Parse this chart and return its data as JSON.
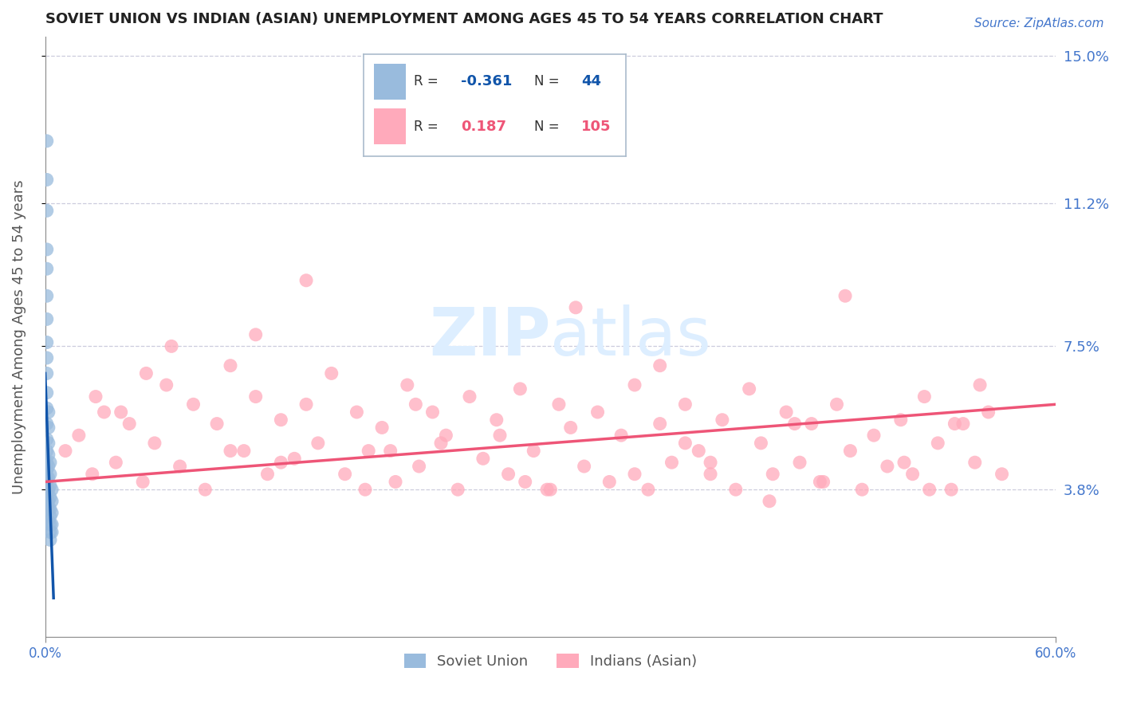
{
  "title": "SOVIET UNION VS INDIAN (ASIAN) UNEMPLOYMENT AMONG AGES 45 TO 54 YEARS CORRELATION CHART",
  "source_text": "Source: ZipAtlas.com",
  "ylabel": "Unemployment Among Ages 45 to 54 years",
  "xlim": [
    0.0,
    0.6
  ],
  "ylim": [
    0.0,
    0.155
  ],
  "yticks": [
    0.038,
    0.075,
    0.112,
    0.15
  ],
  "ytick_labels": [
    "3.8%",
    "7.5%",
    "11.2%",
    "15.0%"
  ],
  "xtick_labels": [
    "0.0%",
    "60.0%"
  ],
  "xtick_positions": [
    0.0,
    0.6
  ],
  "blue_color": "#99BBDD",
  "pink_color": "#FFAABB",
  "blue_line_color": "#1155AA",
  "pink_line_color": "#EE5577",
  "axis_color": "#888888",
  "tick_label_color": "#4477CC",
  "title_color": "#222222",
  "watermark_color": "#DDEEFF",
  "grid_color": "#CCCCDD",
  "soviet_x": [
    0.001,
    0.001,
    0.001,
    0.001,
    0.001,
    0.001,
    0.001,
    0.001,
    0.001,
    0.001,
    0.001,
    0.001,
    0.001,
    0.001,
    0.001,
    0.001,
    0.001,
    0.001,
    0.001,
    0.001,
    0.002,
    0.002,
    0.002,
    0.002,
    0.002,
    0.002,
    0.002,
    0.002,
    0.002,
    0.002,
    0.003,
    0.003,
    0.003,
    0.003,
    0.003,
    0.003,
    0.003,
    0.003,
    0.003,
    0.004,
    0.004,
    0.004,
    0.004,
    0.004
  ],
  "soviet_y": [
    0.128,
    0.118,
    0.11,
    0.1,
    0.095,
    0.088,
    0.082,
    0.076,
    0.072,
    0.068,
    0.063,
    0.059,
    0.055,
    0.051,
    0.048,
    0.045,
    0.043,
    0.041,
    0.038,
    0.036,
    0.058,
    0.054,
    0.05,
    0.047,
    0.044,
    0.041,
    0.038,
    0.035,
    0.033,
    0.03,
    0.045,
    0.042,
    0.039,
    0.036,
    0.033,
    0.031,
    0.029,
    0.027,
    0.025,
    0.038,
    0.035,
    0.032,
    0.029,
    0.027
  ],
  "indian_x": [
    0.012,
    0.02,
    0.028,
    0.035,
    0.042,
    0.05,
    0.058,
    0.065,
    0.072,
    0.08,
    0.088,
    0.095,
    0.102,
    0.11,
    0.118,
    0.125,
    0.132,
    0.14,
    0.148,
    0.155,
    0.162,
    0.17,
    0.178,
    0.185,
    0.192,
    0.2,
    0.208,
    0.215,
    0.222,
    0.23,
    0.238,
    0.245,
    0.252,
    0.26,
    0.268,
    0.275,
    0.282,
    0.29,
    0.298,
    0.305,
    0.312,
    0.32,
    0.328,
    0.335,
    0.342,
    0.35,
    0.358,
    0.365,
    0.372,
    0.38,
    0.388,
    0.395,
    0.402,
    0.41,
    0.418,
    0.425,
    0.432,
    0.44,
    0.448,
    0.455,
    0.462,
    0.47,
    0.478,
    0.485,
    0.492,
    0.5,
    0.508,
    0.515,
    0.522,
    0.53,
    0.538,
    0.545,
    0.552,
    0.56,
    0.568,
    0.075,
    0.155,
    0.235,
    0.315,
    0.395,
    0.475,
    0.555,
    0.045,
    0.125,
    0.205,
    0.285,
    0.365,
    0.445,
    0.525,
    0.06,
    0.14,
    0.22,
    0.3,
    0.38,
    0.46,
    0.54,
    0.03,
    0.11,
    0.19,
    0.27,
    0.35,
    0.43,
    0.51
  ],
  "indian_y": [
    0.048,
    0.052,
    0.042,
    0.058,
    0.045,
    0.055,
    0.04,
    0.05,
    0.065,
    0.044,
    0.06,
    0.038,
    0.055,
    0.07,
    0.048,
    0.062,
    0.042,
    0.056,
    0.046,
    0.06,
    0.05,
    0.068,
    0.042,
    0.058,
    0.048,
    0.054,
    0.04,
    0.065,
    0.044,
    0.058,
    0.052,
    0.038,
    0.062,
    0.046,
    0.056,
    0.042,
    0.064,
    0.048,
    0.038,
    0.06,
    0.054,
    0.044,
    0.058,
    0.04,
    0.052,
    0.065,
    0.038,
    0.055,
    0.045,
    0.06,
    0.048,
    0.042,
    0.056,
    0.038,
    0.064,
    0.05,
    0.042,
    0.058,
    0.045,
    0.055,
    0.04,
    0.06,
    0.048,
    0.038,
    0.052,
    0.044,
    0.056,
    0.042,
    0.062,
    0.05,
    0.038,
    0.055,
    0.045,
    0.058,
    0.042,
    0.075,
    0.092,
    0.05,
    0.085,
    0.045,
    0.088,
    0.065,
    0.058,
    0.078,
    0.048,
    0.04,
    0.07,
    0.055,
    0.038,
    0.068,
    0.045,
    0.06,
    0.038,
    0.05,
    0.04,
    0.055,
    0.062,
    0.048,
    0.038,
    0.052,
    0.042,
    0.035,
    0.045
  ],
  "soviet_trend_x": [
    0.0,
    0.005
  ],
  "soviet_trend_y": [
    0.068,
    0.01
  ],
  "indian_trend_x": [
    0.0,
    0.6
  ],
  "indian_trend_y": [
    0.04,
    0.06
  ]
}
